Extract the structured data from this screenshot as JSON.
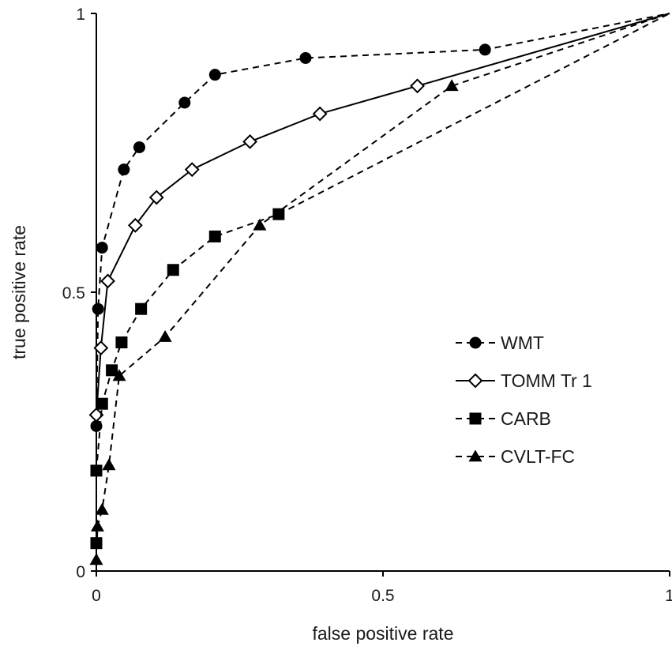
{
  "chart_data": {
    "type": "line",
    "xlabel": "false positive rate",
    "ylabel": "true positive rate",
    "xlim": [
      0,
      1
    ],
    "ylim": [
      0,
      1
    ],
    "x_ticks": [
      "0",
      "0.5",
      "1"
    ],
    "y_ticks": [
      "0",
      "0.5",
      "1"
    ],
    "grid": false,
    "legend_position": "lower-right",
    "series": [
      {
        "name": "WMT",
        "marker": "filled-circle",
        "line": "dashed",
        "color": "#000000",
        "points": [
          [
            0,
            0
          ],
          [
            0,
            0.26
          ],
          [
            0.003,
            0.47
          ],
          [
            0.01,
            0.58
          ],
          [
            0.048,
            0.72
          ],
          [
            0.075,
            0.76
          ],
          [
            0.154,
            0.84
          ],
          [
            0.207,
            0.89
          ],
          [
            0.365,
            0.92
          ],
          [
            0.678,
            0.935
          ],
          [
            1,
            1
          ]
        ]
      },
      {
        "name": "TOMM Tr 1",
        "marker": "open-diamond",
        "line": "solid",
        "color": "#000000",
        "points": [
          [
            0,
            0
          ],
          [
            0,
            0.28
          ],
          [
            0.008,
            0.4
          ],
          [
            0.02,
            0.52
          ],
          [
            0.068,
            0.62
          ],
          [
            0.105,
            0.67
          ],
          [
            0.167,
            0.72
          ],
          [
            0.268,
            0.77
          ],
          [
            0.39,
            0.82
          ],
          [
            0.56,
            0.87
          ],
          [
            1,
            1
          ]
        ]
      },
      {
        "name": "CARB",
        "marker": "filled-square",
        "line": "dashed",
        "color": "#000000",
        "points": [
          [
            0,
            0
          ],
          [
            0,
            0.05
          ],
          [
            0,
            0.18
          ],
          [
            0.01,
            0.3
          ],
          [
            0.027,
            0.36
          ],
          [
            0.044,
            0.41
          ],
          [
            0.078,
            0.47
          ],
          [
            0.134,
            0.54
          ],
          [
            0.207,
            0.6
          ],
          [
            0.318,
            0.64
          ],
          [
            1,
            1
          ]
        ]
      },
      {
        "name": "CVLT-FC",
        "marker": "filled-triangle",
        "line": "dashed",
        "color": "#000000",
        "points": [
          [
            0,
            0
          ],
          [
            0,
            0.02
          ],
          [
            0.002,
            0.08
          ],
          [
            0.01,
            0.11
          ],
          [
            0.022,
            0.19
          ],
          [
            0.04,
            0.35
          ],
          [
            0.12,
            0.42
          ],
          [
            0.285,
            0.62
          ],
          [
            0.62,
            0.87
          ],
          [
            1,
            1
          ]
        ]
      }
    ]
  }
}
